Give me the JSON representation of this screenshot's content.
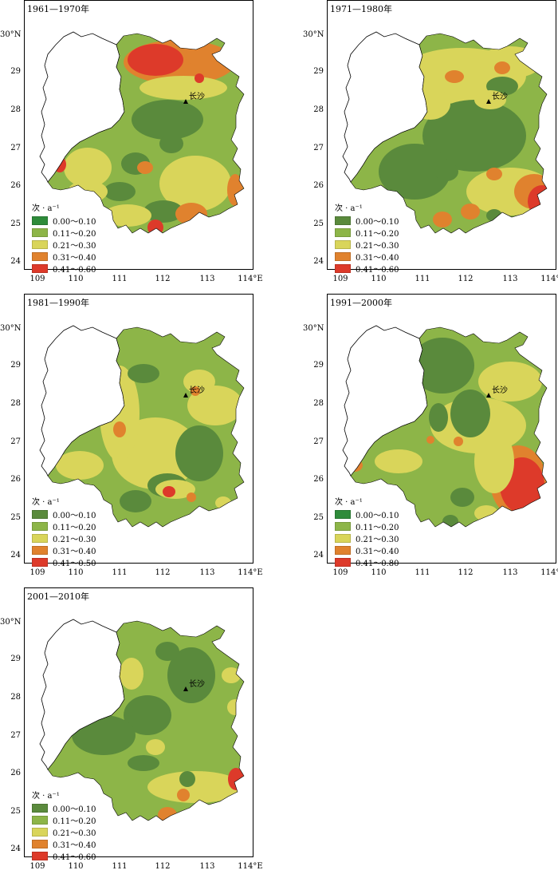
{
  "colors": {
    "c1": "#5a8a3c",
    "c2": "#8db548",
    "c3": "#d9d55a",
    "c4": "#e0822e",
    "c5": "#dd3a2a",
    "c1b": "#2e8b3a"
  },
  "y_ticks": [
    "30°N",
    "29",
    "28",
    "27",
    "26",
    "25",
    "24"
  ],
  "x_ticks": [
    "109",
    "110",
    "111",
    "112",
    "113",
    "114°E"
  ],
  "city": "长沙",
  "legend_title": "次 · a⁻¹",
  "panels": [
    {
      "title": "1961—1970年",
      "legend": [
        "0.00～0.10",
        "0.11～0.20",
        "0.21～0.30",
        "0.31～0.40",
        "0.41～0.60"
      ],
      "first_color": "c1b"
    },
    {
      "title": "1971—1980年",
      "legend": [
        "0.00～0.10",
        "0.11～0.20",
        "0.21～0.30",
        "0.31～0.40",
        "0.41～0.60"
      ],
      "first_color": "c1"
    },
    {
      "title": "1981—1990年",
      "legend": [
        "0.00～0.10",
        "0.11～0.20",
        "0.21～0.30",
        "0.31～0.40",
        "0.41～0.50"
      ],
      "first_color": "c1"
    },
    {
      "title": "1991—2000年",
      "legend": [
        "0.00～0.10",
        "0.11～0.20",
        "0.21～0.30",
        "0.31～0.40",
        "0.41～0.80"
      ],
      "first_color": "c1b"
    },
    {
      "title": "2001—2010年",
      "legend": [
        "0.00～0.10",
        "0.11～0.20",
        "0.21～0.30",
        "0.31～0.40",
        "0.41～0.60"
      ],
      "first_color": "c1"
    }
  ]
}
